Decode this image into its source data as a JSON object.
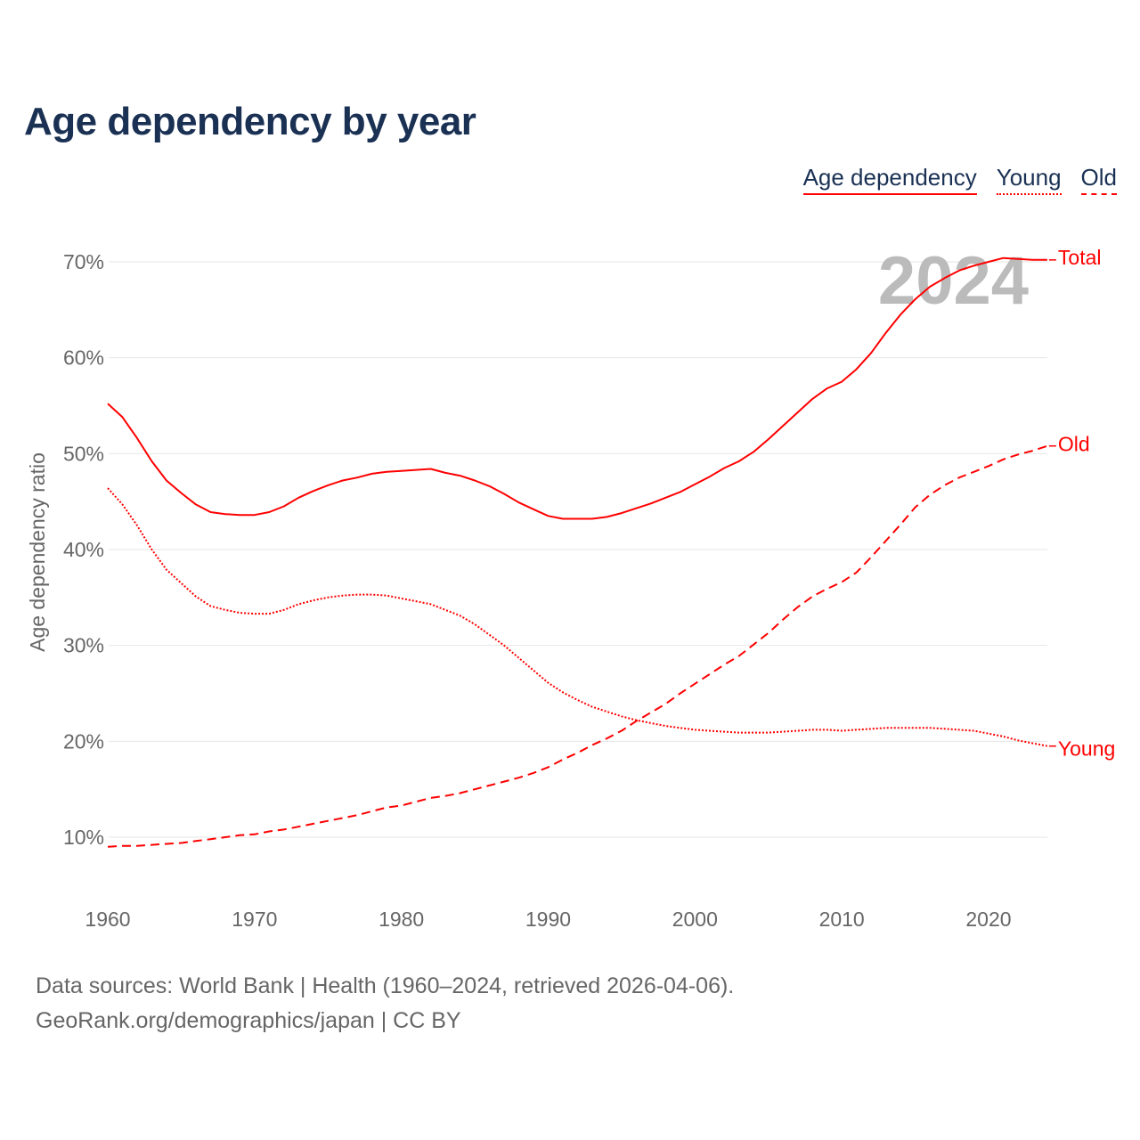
{
  "title": "Age dependency by year",
  "legend": [
    "Age dependency",
    "Young",
    "Old"
  ],
  "year_label": "2024",
  "footer": {
    "line1": "Data sources: World Bank | Health (1960–2024, retrieved 2026-04-06).",
    "line2": "GeoRank.org/demographics/japan | CC BY"
  },
  "colors": {
    "line": "#ff0000",
    "title": "#1a3154",
    "axis_text": "#666666",
    "year": "#bbbbbb"
  },
  "chart_data": {
    "type": "line",
    "title": "Age dependency by year",
    "xlabel": "",
    "ylabel": "Age dependency ratio",
    "xlim": [
      1960,
      2024
    ],
    "ylim": [
      5,
      73
    ],
    "xticks": [
      1960,
      1970,
      1980,
      1990,
      2000,
      2010,
      2020
    ],
    "yticks": [
      10,
      20,
      30,
      40,
      50,
      60,
      70
    ],
    "ytick_labels": [
      "10%",
      "20%",
      "30%",
      "40%",
      "50%",
      "60%",
      "70%"
    ],
    "grid": true,
    "x": [
      1960,
      1961,
      1962,
      1963,
      1964,
      1965,
      1966,
      1967,
      1968,
      1969,
      1970,
      1971,
      1972,
      1973,
      1974,
      1975,
      1976,
      1977,
      1978,
      1979,
      1980,
      1981,
      1982,
      1983,
      1984,
      1985,
      1986,
      1987,
      1988,
      1989,
      1990,
      1991,
      1992,
      1993,
      1994,
      1995,
      1996,
      1997,
      1998,
      1999,
      2000,
      2001,
      2002,
      2003,
      2004,
      2005,
      2006,
      2007,
      2008,
      2009,
      2010,
      2011,
      2012,
      2013,
      2014,
      2015,
      2016,
      2017,
      2018,
      2019,
      2020,
      2021,
      2022,
      2023,
      2024
    ],
    "series": [
      {
        "name": "Total",
        "legend": "Age dependency",
        "style": "solid",
        "values": [
          55.2,
          53.8,
          51.6,
          49.2,
          47.2,
          45.9,
          44.7,
          43.9,
          43.7,
          43.6,
          43.6,
          43.9,
          44.5,
          45.4,
          46.1,
          46.7,
          47.2,
          47.5,
          47.9,
          48.1,
          48.2,
          48.3,
          48.4,
          48.0,
          47.7,
          47.2,
          46.6,
          45.8,
          44.9,
          44.2,
          43.5,
          43.2,
          43.2,
          43.2,
          43.4,
          43.8,
          44.3,
          44.8,
          45.4,
          46.0,
          46.8,
          47.6,
          48.5,
          49.2,
          50.2,
          51.5,
          52.9,
          54.3,
          55.7,
          56.8,
          57.5,
          58.8,
          60.5,
          62.6,
          64.5,
          66.1,
          67.4,
          68.3,
          69.1,
          69.6,
          70.0,
          70.4,
          70.3,
          70.2,
          70.2
        ]
      },
      {
        "name": "Young",
        "legend": "Young",
        "style": "dotted",
        "values": [
          46.4,
          44.7,
          42.5,
          40.0,
          37.9,
          36.5,
          35.1,
          34.1,
          33.7,
          33.4,
          33.3,
          33.3,
          33.7,
          34.3,
          34.7,
          35.0,
          35.2,
          35.3,
          35.3,
          35.2,
          34.9,
          34.6,
          34.3,
          33.7,
          33.1,
          32.2,
          31.1,
          30.0,
          28.7,
          27.4,
          26.1,
          25.1,
          24.3,
          23.6,
          23.1,
          22.6,
          22.2,
          21.9,
          21.6,
          21.4,
          21.2,
          21.1,
          21.0,
          20.9,
          20.9,
          20.9,
          21.0,
          21.1,
          21.2,
          21.2,
          21.1,
          21.2,
          21.3,
          21.4,
          21.4,
          21.4,
          21.4,
          21.3,
          21.2,
          21.1,
          20.8,
          20.5,
          20.1,
          19.8,
          19.5
        ]
      },
      {
        "name": "Old",
        "legend": "Old",
        "style": "dashed",
        "values": [
          9.0,
          9.1,
          9.1,
          9.2,
          9.3,
          9.4,
          9.6,
          9.8,
          10.0,
          10.2,
          10.3,
          10.6,
          10.8,
          11.1,
          11.4,
          11.7,
          12.0,
          12.3,
          12.7,
          13.1,
          13.3,
          13.7,
          14.1,
          14.3,
          14.6,
          15.0,
          15.4,
          15.8,
          16.2,
          16.7,
          17.3,
          18.1,
          18.8,
          19.6,
          20.3,
          21.1,
          22.1,
          23.0,
          23.9,
          25.0,
          26.0,
          27.0,
          28.0,
          28.9,
          30.1,
          31.3,
          32.7,
          34.0,
          35.1,
          35.9,
          36.6,
          37.6,
          39.2,
          40.9,
          42.6,
          44.4,
          45.7,
          46.7,
          47.5,
          48.1,
          48.7,
          49.4,
          49.9,
          50.3,
          50.8
        ]
      }
    ]
  }
}
